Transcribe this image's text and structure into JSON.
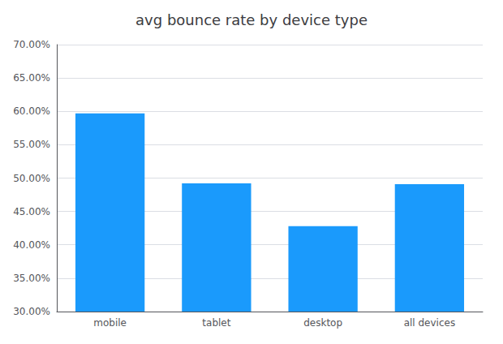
{
  "chart_data": {
    "type": "bar",
    "title": "avg bounce rate by device type",
    "categories": [
      "mobile",
      "tablet",
      "desktop",
      "all devices"
    ],
    "values": [
      0.597,
      0.492,
      0.428,
      0.491
    ],
    "color": "#1a9afc",
    "ylim": [
      0.3,
      0.7
    ],
    "yticks": [
      {
        "value": 0.3,
        "label": "30.00%"
      },
      {
        "value": 0.35,
        "label": "35.00%"
      },
      {
        "value": 0.4,
        "label": "40.00%"
      },
      {
        "value": 0.45,
        "label": "45.00%"
      },
      {
        "value": 0.5,
        "label": "50.00%"
      },
      {
        "value": 0.55,
        "label": "55.00%"
      },
      {
        "value": 0.6,
        "label": "60.00%"
      },
      {
        "value": 0.65,
        "label": "65.00%"
      },
      {
        "value": 0.7,
        "label": "70.00%"
      }
    ],
    "grid": true
  }
}
